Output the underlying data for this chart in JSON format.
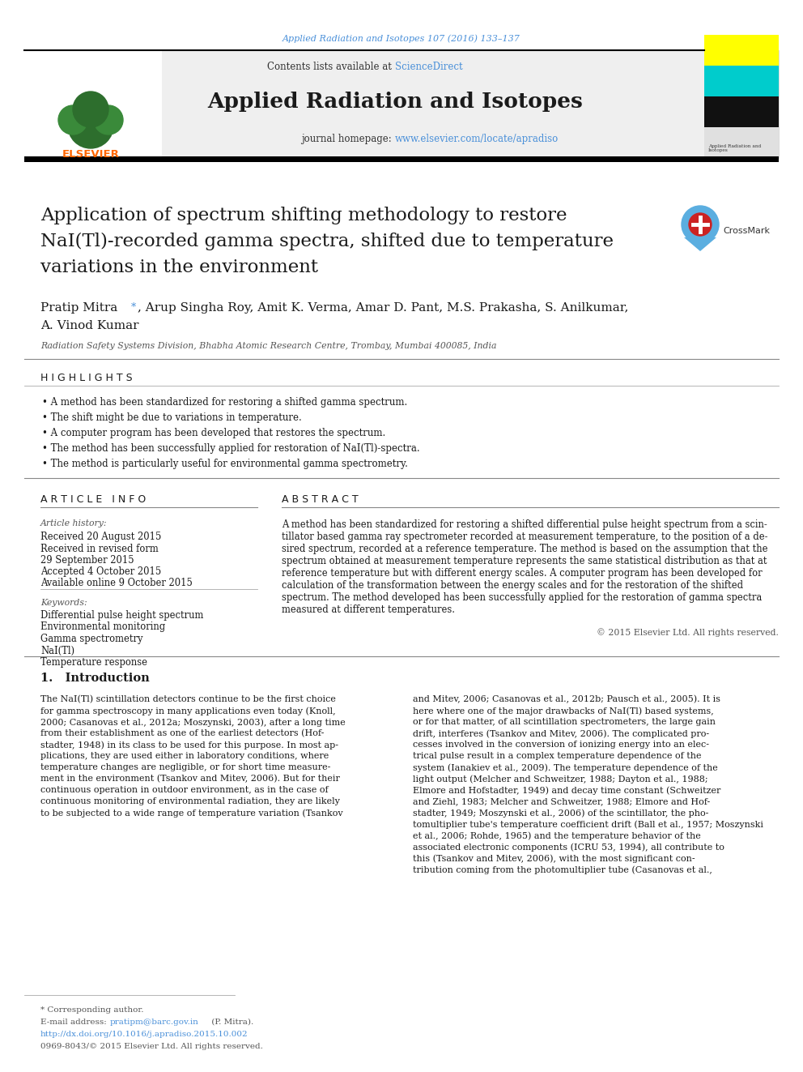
{
  "journal_ref": "Applied Radiation and Isotopes 107 (2016) 133–137",
  "journal_name": "Applied Radiation and Isotopes",
  "contents_text": "Contents lists available at ",
  "sciencedirect": "ScienceDirect",
  "journal_homepage_label": "journal homepage: ",
  "journal_url": "www.elsevier.com/locate/apradiso",
  "title": "Application of spectrum shifting methodology to restore\nNaI(Tl)-recorded gamma spectra, shifted due to temperature\nvariations in the environment",
  "affiliation": "Radiation Safety Systems Division, Bhabha Atomic Research Centre, Trombay, Mumbai 400085, India",
  "highlights_title": "H I G H L I G H T S",
  "highlights": [
    "A method has been standardized for restoring a shifted gamma spectrum.",
    "The shift might be due to variations in temperature.",
    "A computer program has been developed that restores the spectrum.",
    "The method has been successfully applied for restoration of NaI(Tl)-spectra.",
    "The method is particularly useful for environmental gamma spectrometry."
  ],
  "article_info_title": "A R T I C L E   I N F O",
  "article_history_label": "Article history:",
  "received": "Received 20 August 2015",
  "accepted": "Accepted 4 October 2015",
  "available": "Available online 9 October 2015",
  "keywords_label": "Keywords:",
  "keywords": [
    "Differential pulse height spectrum",
    "Environmental monitoring",
    "Gamma spectrometry",
    "NaI(Tl)",
    "Temperature response"
  ],
  "abstract_title": "A B S T R A C T",
  "abstract_text": "A method has been standardized for restoring a shifted differential pulse height spectrum from a scin-\ntillator based gamma ray spectrometer recorded at measurement temperature, to the position of a de-\nsired spectrum, recorded at a reference temperature. The method is based on the assumption that the\nspectrum obtained at measurement temperature represents the same statistical distribution as that at\nreference temperature but with different energy scales. A computer program has been developed for\ncalculation of the transformation between the energy scales and for the restoration of the shifted\nspectrum. The method developed has been successfully applied for the restoration of gamma spectra\nmeasured at different temperatures.",
  "copyright": "© 2015 Elsevier Ltd. All rights reserved.",
  "intro_title": "1.   Introduction",
  "intro_text_left": [
    "The NaI(Tl) scintillation detectors continue to be the first choice",
    "for gamma spectroscopy in many applications even today (Knoll,",
    "2000; Casanovas et al., 2012a; Moszynski, 2003), after a long time",
    "from their establishment as one of the earliest detectors (Hof-",
    "stadter, 1948) in its class to be used for this purpose. In most ap-",
    "plications, they are used either in laboratory conditions, where",
    "temperature changes are negligible, or for short time measure-",
    "ment in the environment (Tsankov and Mitev, 2006). But for their",
    "continuous operation in outdoor environment, as in the case of",
    "continuous monitoring of environmental radiation, they are likely",
    "to be subjected to a wide range of temperature variation (Tsankov"
  ],
  "intro_text_right": [
    "and Mitev, 2006; Casanovas et al., 2012b; Pausch et al., 2005). It is",
    "here where one of the major drawbacks of NaI(Tl) based systems,",
    "or for that matter, of all scintillation spectrometers, the large gain",
    "drift, interferes (Tsankov and Mitev, 2006). The complicated pro-",
    "cesses involved in the conversion of ionizing energy into an elec-",
    "trical pulse result in a complex temperature dependence of the",
    "system (Ianakiev et al., 2009). The temperature dependence of the",
    "light output (Melcher and Schweitzer, 1988; Dayton et al., 1988;",
    "Elmore and Hofstadter, 1949) and decay time constant (Schweitzer",
    "and Ziehl, 1983; Melcher and Schweitzer, 1988; Elmore and Hof-",
    "stadter, 1949; Moszynski et al., 2006) of the scintillator, the pho-",
    "tomultiplier tube's temperature coefficient drift (Ball et al., 1957; Moszynski",
    "et al., 2006; Rohde, 1965) and the temperature behavior of the",
    "associated electronic components (ICRU 53, 1994), all contribute to",
    "this (Tsankov and Mitev, 2006), with the most significant con-",
    "tribution coming from the photomultiplier tube (Casanovas et al.,"
  ],
  "footnote_star": "* Corresponding author.",
  "footnote_email_label": "E-mail address: ",
  "footnote_email": "pratipm@barc.gov.in",
  "footnote_email_suffix": " (P. Mitra).",
  "footnote_doi": "http://dx.doi.org/10.1016/j.apradiso.2015.10.002",
  "footnote_issn": "0969-8043/© 2015 Elsevier Ltd. All rights reserved.",
  "bg_color": "#ffffff",
  "link_color": "#4a90d9",
  "text_color": "#1a1a1a",
  "gray_text": "#555555"
}
